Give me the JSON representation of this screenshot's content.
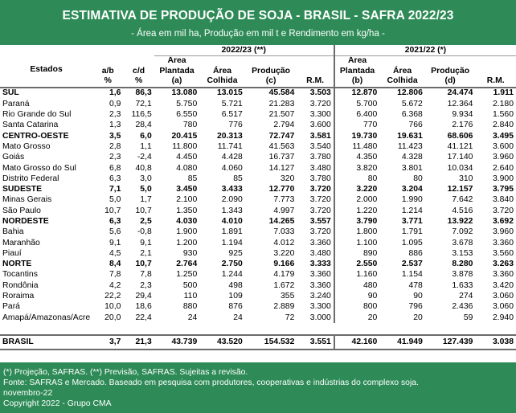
{
  "header": {
    "title": "ESTIMATIVA DE PRODUÇÃO DE SOJA - BRASIL - SAFRA 2022/23",
    "subtitle": "- Área em mil ha, Produção em mil t e Rendimento em kg/ha -"
  },
  "table": {
    "block_2223": "2022/23 (**)",
    "block_2122": "2021/22 (*)",
    "col_headers": {
      "estados": "Estados",
      "ab": [
        "a/b",
        "%"
      ],
      "cd": [
        "c/d",
        "%"
      ],
      "area_plantada_a": [
        "Área",
        "Plantada",
        "(a)"
      ],
      "area_colhida_2223": [
        "Área",
        "Colhida"
      ],
      "producao_c": [
        "Produção",
        "(c)"
      ],
      "rm_2223": [
        "R.M."
      ],
      "area_plantada_b": [
        "Área",
        "Plantada",
        "(b)"
      ],
      "area_colhida_2122": [
        "Área",
        "Colhida"
      ],
      "producao_d": [
        "Produção",
        "(d)"
      ],
      "rm_2122": [
        "R.M."
      ]
    },
    "rows": [
      {
        "bold": true,
        "cells": [
          "SUL",
          "1,6",
          "86,3",
          "13.080",
          "13.015",
          "45.584",
          "3.503",
          "12.870",
          "12.806",
          "24.474",
          "1.911"
        ]
      },
      {
        "bold": false,
        "cells": [
          "Paraná",
          "0,9",
          "72,1",
          "5.750",
          "5.721",
          "21.283",
          "3.720",
          "5.700",
          "5.672",
          "12.364",
          "2.180"
        ]
      },
      {
        "bold": false,
        "cells": [
          "Rio Grande do Sul",
          "2,3",
          "116,5",
          "6.550",
          "6.517",
          "21.507",
          "3.300",
          "6.400",
          "6.368",
          "9.934",
          "1.560"
        ]
      },
      {
        "bold": false,
        "cells": [
          "Santa Catarina",
          "1,3",
          "28,4",
          "780",
          "776",
          "2.794",
          "3.600",
          "770",
          "766",
          "2.176",
          "2.840"
        ]
      },
      {
        "bold": true,
        "cells": [
          "CENTRO-OESTE",
          "3,5",
          "6,0",
          "20.415",
          "20.313",
          "72.747",
          "3.581",
          "19.730",
          "19.631",
          "68.606",
          "3.495"
        ]
      },
      {
        "bold": false,
        "cells": [
          "Mato Grosso",
          "2,8",
          "1,1",
          "11.800",
          "11.741",
          "41.563",
          "3.540",
          "11.480",
          "11.423",
          "41.121",
          "3.600"
        ]
      },
      {
        "bold": false,
        "cells": [
          "Goiás",
          "2,3",
          "-2,4",
          "4.450",
          "4.428",
          "16.737",
          "3.780",
          "4.350",
          "4.328",
          "17.140",
          "3.960"
        ]
      },
      {
        "bold": false,
        "cells": [
          "Mato Grosso do Sul",
          "6,8",
          "40,8",
          "4.080",
          "4.060",
          "14.127",
          "3.480",
          "3.820",
          "3.801",
          "10.034",
          "2.640"
        ]
      },
      {
        "bold": false,
        "cells": [
          "Distrito Federal",
          "6,3",
          "3,0",
          "85",
          "85",
          "320",
          "3.780",
          "80",
          "80",
          "310",
          "3.900"
        ]
      },
      {
        "bold": true,
        "cells": [
          "SUDESTE",
          "7,1",
          "5,0",
          "3.450",
          "3.433",
          "12.770",
          "3.720",
          "3.220",
          "3.204",
          "12.157",
          "3.795"
        ]
      },
      {
        "bold": false,
        "cells": [
          "Minas Gerais",
          "5,0",
          "1,7",
          "2.100",
          "2.090",
          "7.773",
          "3.720",
          "2.000",
          "1.990",
          "7.642",
          "3.840"
        ]
      },
      {
        "bold": false,
        "cells": [
          "São Paulo",
          "10,7",
          "10,7",
          "1.350",
          "1.343",
          "4.997",
          "3.720",
          "1.220",
          "1.214",
          "4.516",
          "3.720"
        ]
      },
      {
        "bold": true,
        "cells": [
          "NORDESTE",
          "6,3",
          "2,5",
          "4.030",
          "4.010",
          "14.265",
          "3.557",
          "3.790",
          "3.771",
          "13.922",
          "3.692"
        ]
      },
      {
        "bold": false,
        "cells": [
          "Bahia",
          "5,6",
          "-0,8",
          "1.900",
          "1.891",
          "7.033",
          "3.720",
          "1.800",
          "1.791",
          "7.092",
          "3.960"
        ]
      },
      {
        "bold": false,
        "cells": [
          "Maranhão",
          "9,1",
          "9,1",
          "1.200",
          "1.194",
          "4.012",
          "3.360",
          "1.100",
          "1.095",
          "3.678",
          "3.360"
        ]
      },
      {
        "bold": false,
        "cells": [
          "Piauí",
          "4,5",
          "2,1",
          "930",
          "925",
          "3.220",
          "3.480",
          "890",
          "886",
          "3.153",
          "3.560"
        ]
      },
      {
        "bold": true,
        "cells": [
          "NORTE",
          "8,4",
          "10,7",
          "2.764",
          "2.750",
          "9.166",
          "3.333",
          "2.550",
          "2.537",
          "8.280",
          "3.263"
        ]
      },
      {
        "bold": false,
        "cells": [
          "Tocantins",
          "7,8",
          "7,8",
          "1.250",
          "1.244",
          "4.179",
          "3.360",
          "1.160",
          "1.154",
          "3.878",
          "3.360"
        ]
      },
      {
        "bold": false,
        "cells": [
          "Rondônia",
          "4,2",
          "2,3",
          "500",
          "498",
          "1.672",
          "3.360",
          "480",
          "478",
          "1.633",
          "3.420"
        ]
      },
      {
        "bold": false,
        "cells": [
          "Roraima",
          "22,2",
          "29,4",
          "110",
          "109",
          "355",
          "3.240",
          "90",
          "90",
          "274",
          "3.060"
        ]
      },
      {
        "bold": false,
        "cells": [
          "Pará",
          "10,0",
          "18,6",
          "880",
          "876",
          "2.889",
          "3.300",
          "800",
          "796",
          "2.436",
          "3.060"
        ]
      },
      {
        "bold": false,
        "cells": [
          "Amapá/Amazonas/Acre",
          "20,0",
          "22,4",
          "24",
          "24",
          "72",
          "3.000",
          "20",
          "20",
          "59",
          "2.940"
        ]
      }
    ],
    "total": [
      "BRASIL",
      "3,7",
      "21,3",
      "43.739",
      "43.520",
      "154.532",
      "3.551",
      "42.160",
      "41.949",
      "127.439",
      "3.038"
    ]
  },
  "footer": {
    "lines": [
      "(*) Projeção, SAFRAS. (**) Previsão, SAFRAS. Sujeitas a revisão.",
      "Fonte: SAFRAS e Mercado. Baseado em pesquisa com produtores, cooperativas e indústrias do complexo soja.",
      "novembro-22",
      "Copyright 2022 - Grupo CMA"
    ]
  },
  "colors": {
    "banner_green": "#2e8b57",
    "banner_text": "#ffffff",
    "rule_gray": "#6b6b6b"
  }
}
